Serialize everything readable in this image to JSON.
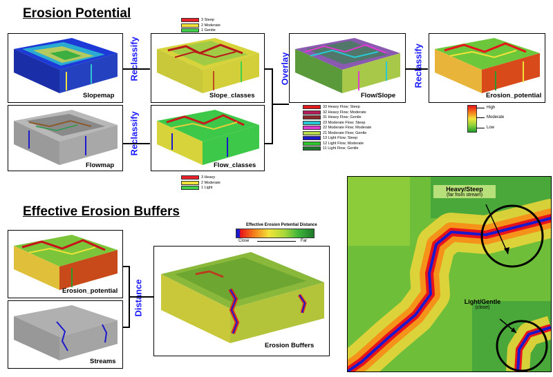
{
  "titles": {
    "erosion_potential": "Erosion Potential",
    "effective_buffers": "Effective Erosion Buffers"
  },
  "panels": {
    "slopemap": "Slopemap",
    "flowmap": "Flowmap",
    "slope_classes": "Slope_classes",
    "flow_classes": "Flow_classes",
    "flow_slope": "Flow/Slope",
    "erosion_potential_top": "Erosion_potential",
    "erosion_potential_bottom": "Erosion_potential",
    "streams": "Streams",
    "erosion_buffers": "Erosion Buffers"
  },
  "operations": {
    "reclassify_1": "Reclassify",
    "reclassify_2": "Reclassify",
    "overlay": "Overlay",
    "reclassify_3": "Reclassify",
    "distance": "Distance"
  },
  "slope_legend": [
    {
      "label": "3 Steep",
      "color": "#e8212b"
    },
    {
      "label": "2 Moderate",
      "color": "#f2e33a"
    },
    {
      "label": "1 Gentle",
      "color": "#3fd24a"
    }
  ],
  "flow_legend": [
    {
      "label": "3 Heavy",
      "color": "#e8212b"
    },
    {
      "label": "2 Moderate",
      "color": "#f2e33a"
    },
    {
      "label": "1 Light",
      "color": "#3fd24a"
    }
  ],
  "flowslope_legend": [
    {
      "label": "33 Heavy Flow; Steep",
      "color": "#e01a1a"
    },
    {
      "label": "32 Heavy Flow; Moderate",
      "color": "#b41e5a"
    },
    {
      "label": "31 Heavy Flow; Gentle",
      "color": "#8a2a2a"
    },
    {
      "label": "23 Moderate Flow; Steep",
      "color": "#27c9d6"
    },
    {
      "label": "22 Moderate Flow; Moderate",
      "color": "#e23ad0"
    },
    {
      "label": "21 Moderate Flow; Gentle",
      "color": "#b8e04a"
    },
    {
      "label": "13 Light Flow; Steep",
      "color": "#1a1acc"
    },
    {
      "label": "12 Light Flow; Moderate",
      "color": "#2ec82e"
    },
    {
      "label": "11 Light Flow; Gentle",
      "color": "#1e7a2a"
    }
  ],
  "erosion_scale": {
    "high": "High",
    "moderate": "Moderate",
    "low": "Low",
    "colors": [
      "#e8121a",
      "#f47a1a",
      "#f2e33a",
      "#8fd23a",
      "#1f9e2a"
    ]
  },
  "distance_scale": {
    "title": "Effective Erosion Potential Distance",
    "close": "Close",
    "far": "Far",
    "colors": [
      "#1a1acc",
      "#e8121a",
      "#f47a1a",
      "#f2e33a",
      "#a9d83a",
      "#3fb43a",
      "#1e7a2a"
    ]
  },
  "map_annotations": {
    "heavy": "Heavy/Steep",
    "heavy_sub": "(far from stream)",
    "light": "Light/Gentle",
    "light_sub": "(close)"
  }
}
